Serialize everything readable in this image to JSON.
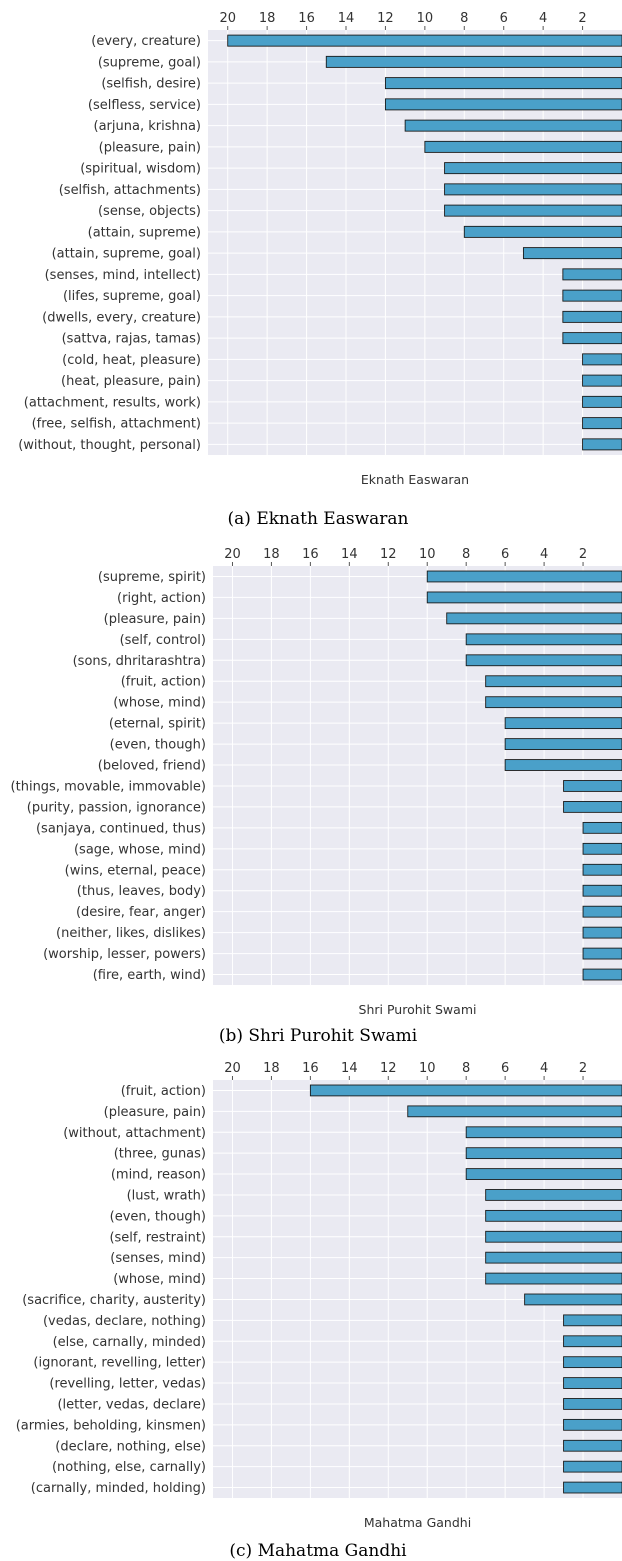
{
  "chart_data": [
    {
      "type": "bar",
      "orientation": "horizontal",
      "x_axis": "top, reversed",
      "xlim": [
        21,
        0
      ],
      "xticks": [
        20,
        18,
        16,
        14,
        12,
        10,
        8,
        6,
        4,
        2
      ],
      "xlabel": "Eknath Easwaran",
      "caption": "(a)  Eknath Easwaran",
      "grid": true,
      "bar_color": "#4aa0c9",
      "categories": [
        "(every, creature)",
        "(supreme, goal)",
        "(selfish, desire)",
        "(selfless, service)",
        "(arjuna, krishna)",
        "(pleasure, pain)",
        "(spiritual, wisdom)",
        "(selfish, attachments)",
        "(sense, objects)",
        "(attain, supreme)",
        "(attain, supreme, goal)",
        "(senses, mind, intellect)",
        "(lifes, supreme, goal)",
        "(dwells, every, creature)",
        "(sattva, rajas, tamas)",
        "(cold, heat, pleasure)",
        "(heat, pleasure, pain)",
        "(attachment, results, work)",
        "(free, selfish, attachment)",
        "(without, thought, personal)"
      ],
      "values": [
        20,
        15,
        12,
        12,
        11,
        10,
        9,
        9,
        9,
        8,
        5,
        3,
        3,
        3,
        3,
        2,
        2,
        2,
        2,
        2
      ]
    },
    {
      "type": "bar",
      "orientation": "horizontal",
      "x_axis": "top, reversed",
      "xlim": [
        21,
        0
      ],
      "xticks": [
        20,
        18,
        16,
        14,
        12,
        10,
        8,
        6,
        4,
        2
      ],
      "xlabel": "Shri Purohit Swami",
      "caption": "(b)  Shri Purohit Swami",
      "grid": true,
      "bar_color": "#4aa0c9",
      "categories": [
        "(supreme, spirit)",
        "(right, action)",
        "(pleasure, pain)",
        "(self, control)",
        "(sons, dhritarashtra)",
        "(fruit, action)",
        "(whose, mind)",
        "(eternal, spirit)",
        "(even, though)",
        "(beloved, friend)",
        "(things, movable, immovable)",
        "(purity, passion, ignorance)",
        "(sanjaya, continued, thus)",
        "(sage, whose, mind)",
        "(wins, eternal, peace)",
        "(thus, leaves, body)",
        "(desire, fear, anger)",
        "(neither, likes, dislikes)",
        "(worship, lesser, powers)",
        "(fire, earth, wind)"
      ],
      "values": [
        10,
        10,
        9,
        8,
        8,
        7,
        7,
        6,
        6,
        6,
        3,
        3,
        2,
        2,
        2,
        2,
        2,
        2,
        2,
        2
      ]
    },
    {
      "type": "bar",
      "orientation": "horizontal",
      "x_axis": "top, reversed",
      "xlim": [
        21,
        0
      ],
      "xticks": [
        20,
        18,
        16,
        14,
        12,
        10,
        8,
        6,
        4,
        2
      ],
      "xlabel": "Mahatma Gandhi",
      "caption": "(c)  Mahatma Gandhi",
      "grid": true,
      "bar_color": "#4aa0c9",
      "categories": [
        "(fruit, action)",
        "(pleasure, pain)",
        "(without, attachment)",
        "(three, gunas)",
        "(mind, reason)",
        "(lust, wrath)",
        "(even, though)",
        "(self, restraint)",
        "(senses, mind)",
        "(whose, mind)",
        "(sacrifice, charity, austerity)",
        "(vedas, declare, nothing)",
        "(else, carnally, minded)",
        "(ignorant, revelling, letter)",
        "(revelling, letter, vedas)",
        "(letter, vedas, declare)",
        "(armies, beholding, kinsmen)",
        "(declare, nothing, else)",
        "(nothing, else, carnally)",
        "(carnally, minded, holding)"
      ],
      "values": [
        16,
        11,
        8,
        8,
        8,
        7,
        7,
        7,
        7,
        7,
        5,
        3,
        3,
        3,
        3,
        3,
        3,
        3,
        3,
        3
      ]
    }
  ]
}
